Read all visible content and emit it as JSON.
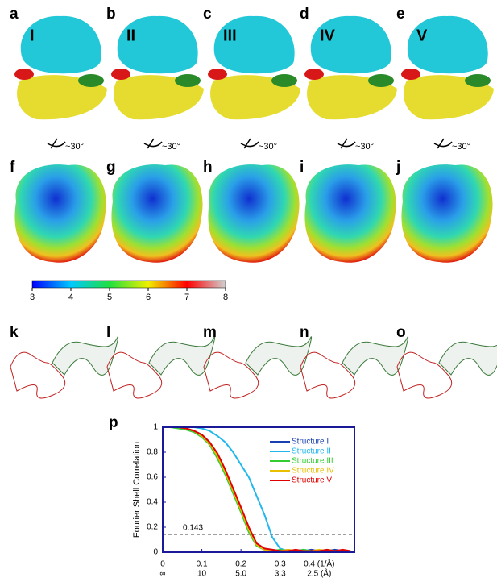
{
  "top_row": {
    "labels": [
      "a",
      "b",
      "c",
      "d",
      "e"
    ],
    "states": [
      "I",
      "II",
      "III",
      "IV",
      "V"
    ]
  },
  "rotation_label": "~30°",
  "middle_row": {
    "labels": [
      "f",
      "g",
      "h",
      "i",
      "j"
    ]
  },
  "colorbar": {
    "ticks": [
      3,
      4,
      5,
      6,
      7,
      8
    ],
    "lim": [
      3,
      8
    ]
  },
  "bottom_row": {
    "labels": [
      "k",
      "l",
      "m",
      "n",
      "o"
    ]
  },
  "chart_data": {
    "type": "line",
    "panel_label": "p",
    "ylabel": "Fourier Shell Correlation",
    "x": [
      0,
      0.02,
      0.04,
      0.06,
      0.08,
      0.1,
      0.12,
      0.14,
      0.16,
      0.18,
      0.2,
      0.22,
      0.24,
      0.26,
      0.28,
      0.3,
      0.32,
      0.34,
      0.36,
      0.38,
      0.4,
      0.42,
      0.44,
      0.46,
      0.48
    ],
    "series": [
      {
        "name": "Structure I",
        "color": "#1a3fb0",
        "values": [
          1,
          1,
          1,
          0.99,
          0.97,
          0.94,
          0.88,
          0.78,
          0.65,
          0.5,
          0.35,
          0.19,
          0.06,
          0.02,
          0.02,
          0.01,
          0.02,
          0.01,
          0.01,
          0.02,
          0.01,
          0.01,
          0.02,
          0.01,
          0.01
        ]
      },
      {
        "name": "Structure II",
        "color": "#22b8ee",
        "values": [
          1,
          1,
          1,
          1,
          1,
          0.99,
          0.97,
          0.93,
          0.88,
          0.8,
          0.7,
          0.6,
          0.45,
          0.3,
          0.12,
          0.03,
          0.01,
          0.01,
          0.02,
          0.01,
          0.01,
          0.01,
          0.01,
          0.01,
          0.01
        ]
      },
      {
        "name": "Structure III",
        "color": "#33cc33",
        "values": [
          1,
          1,
          0.99,
          0.98,
          0.96,
          0.92,
          0.86,
          0.75,
          0.62,
          0.47,
          0.32,
          0.16,
          0.05,
          0.02,
          0.01,
          0.02,
          0.01,
          0.01,
          0.02,
          0.01,
          0.01,
          0.02,
          0.01,
          0.01,
          0.01
        ]
      },
      {
        "name": "Structure IV",
        "color": "#e8c000",
        "values": [
          1,
          1,
          1,
          0.99,
          0.97,
          0.93,
          0.87,
          0.77,
          0.64,
          0.49,
          0.34,
          0.18,
          0.06,
          0.02,
          0.01,
          0.01,
          0.02,
          0.01,
          0.01,
          0.01,
          0.02,
          0.01,
          0.01,
          0.01,
          0.01
        ]
      },
      {
        "name": "Structure V",
        "color": "#e00000",
        "values": [
          1,
          1,
          1,
          0.99,
          0.97,
          0.94,
          0.88,
          0.79,
          0.66,
          0.51,
          0.36,
          0.2,
          0.07,
          0.03,
          0.02,
          0.01,
          0.01,
          0.02,
          0.01,
          0.01,
          0.01,
          0.02,
          0.01,
          0.02,
          0.01
        ]
      }
    ],
    "xlim": [
      0,
      0.49
    ],
    "ylim": [
      0,
      1
    ],
    "xticks": [
      0,
      0.1,
      0.2,
      0.3,
      {
        "value": 0.4,
        "label": "0.4 (1/Å)"
      }
    ],
    "resolution_labels": [
      "∞",
      "10",
      "5.0",
      "3.3",
      "2.5 (Å)"
    ],
    "yticks": [
      0,
      0.2,
      0.4,
      0.6,
      0.8,
      1
    ],
    "threshold": 0.143
  }
}
